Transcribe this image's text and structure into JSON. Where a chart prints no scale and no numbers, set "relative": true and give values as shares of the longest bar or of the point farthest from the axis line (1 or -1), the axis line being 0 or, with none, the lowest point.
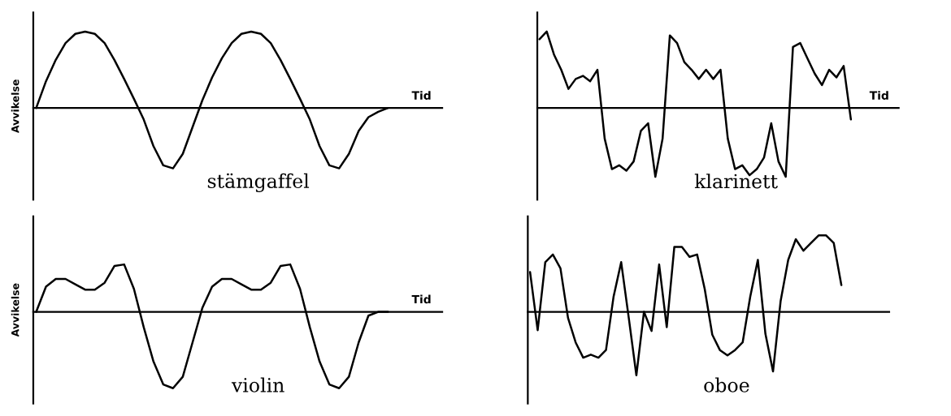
{
  "chart_data": [
    {
      "type": "line",
      "relative": true,
      "xlabel": "Tid",
      "ylabel": "Avvikelse",
      "annotations": [
        "stämgaffel"
      ],
      "categories": [
        null,
        null,
        null,
        null,
        null,
        null,
        null,
        null,
        null,
        null,
        null,
        null,
        null,
        null,
        null,
        null,
        null,
        null,
        null,
        null,
        null,
        null,
        null,
        null,
        null,
        null,
        null,
        null,
        null,
        null,
        null,
        null,
        null,
        null,
        null,
        null,
        null
      ],
      "series": [
        {
          "color": "#000000",
          "values": [
            0,
            0.35,
            0.63,
            0.85,
            0.97,
            1.0,
            0.97,
            0.85,
            0.63,
            0.38,
            0.12,
            -0.15,
            -0.5,
            -0.75,
            -0.79,
            -0.6,
            -0.25,
            0.1,
            0.4,
            0.65,
            0.85,
            0.97,
            1.0,
            0.97,
            0.85,
            0.63,
            0.38,
            0.12,
            -0.15,
            -0.5,
            -0.75,
            -0.79,
            -0.6,
            -0.3,
            -0.12,
            -0.05,
            0
          ]
        }
      ]
    },
    {
      "type": "line",
      "relative": true,
      "xlabel": "Tid",
      "annotations": [
        "klarinett"
      ],
      "categories": [
        null,
        null,
        null,
        null,
        null,
        null,
        null,
        null,
        null,
        null,
        null,
        null,
        null,
        null,
        null,
        null,
        null,
        null,
        null,
        null,
        null,
        null,
        null,
        null,
        null,
        null,
        null,
        null,
        null,
        null,
        null,
        null,
        null,
        null,
        null,
        null,
        null,
        null,
        null,
        null,
        null,
        null,
        null,
        null
      ],
      "series": [
        {
          "color": "#000000",
          "values": [
            0.9,
            1.0,
            0.7,
            0.5,
            0.25,
            0.38,
            0.42,
            0.35,
            0.5,
            -0.4,
            -0.8,
            -0.75,
            -0.82,
            -0.7,
            -0.3,
            -0.2,
            -0.9,
            -0.4,
            0.95,
            0.85,
            0.6,
            0.5,
            0.38,
            0.5,
            0.38,
            0.5,
            -0.4,
            -0.8,
            -0.75,
            -0.88,
            -0.8,
            -0.65,
            -0.2,
            -0.7,
            -0.9,
            0.8,
            0.85,
            0.65,
            0.45,
            0.3,
            0.5,
            0.4,
            0.55,
            -0.15
          ]
        }
      ]
    },
    {
      "type": "line",
      "relative": true,
      "xlabel": "Tid",
      "ylabel": "Avvikelse",
      "annotations": [
        "violin"
      ],
      "categories": [
        null,
        null,
        null,
        null,
        null,
        null,
        null,
        null,
        null,
        null,
        null,
        null,
        null,
        null,
        null,
        null,
        null,
        null,
        null,
        null,
        null,
        null,
        null,
        null,
        null,
        null,
        null,
        null,
        null,
        null,
        null,
        null,
        null,
        null,
        null,
        null,
        null
      ],
      "series": [
        {
          "color": "#000000",
          "values": [
            0,
            0.33,
            0.43,
            0.43,
            0.36,
            0.29,
            0.29,
            0.38,
            0.6,
            0.62,
            0.3,
            -0.2,
            -0.65,
            -0.95,
            -1.0,
            -0.85,
            -0.4,
            0.05,
            0.33,
            0.43,
            0.43,
            0.36,
            0.29,
            0.29,
            0.38,
            0.6,
            0.62,
            0.3,
            -0.2,
            -0.65,
            -0.95,
            -1.0,
            -0.85,
            -0.4,
            -0.05,
            0,
            0
          ]
        }
      ]
    },
    {
      "type": "line",
      "relative": true,
      "annotations": [
        "oboe"
      ],
      "categories": [
        null,
        null,
        null,
        null,
        null,
        null,
        null,
        null,
        null,
        null,
        null,
        null,
        null,
        null,
        null,
        null,
        null,
        null,
        null,
        null,
        null,
        null,
        null,
        null,
        null,
        null,
        null,
        null,
        null,
        null,
        null,
        null,
        null,
        null,
        null,
        null,
        null,
        null,
        null,
        null,
        null,
        null
      ],
      "series": [
        {
          "color": "#000000",
          "values": [
            0.52,
            -0.24,
            0.65,
            0.75,
            0.57,
            -0.08,
            -0.4,
            -0.6,
            -0.56,
            -0.6,
            -0.5,
            0.2,
            0.65,
            -0.08,
            -0.83,
            0.0,
            -0.25,
            0.62,
            -0.2,
            0.85,
            0.85,
            0.72,
            0.75,
            0.3,
            -0.3,
            -0.5,
            -0.57,
            -0.5,
            -0.4,
            0.2,
            0.68,
            -0.29,
            -0.78,
            0.14,
            0.68,
            0.95,
            0.8,
            0.9,
            1.0,
            1.0,
            0.9,
            0.35
          ]
        }
      ]
    }
  ]
}
